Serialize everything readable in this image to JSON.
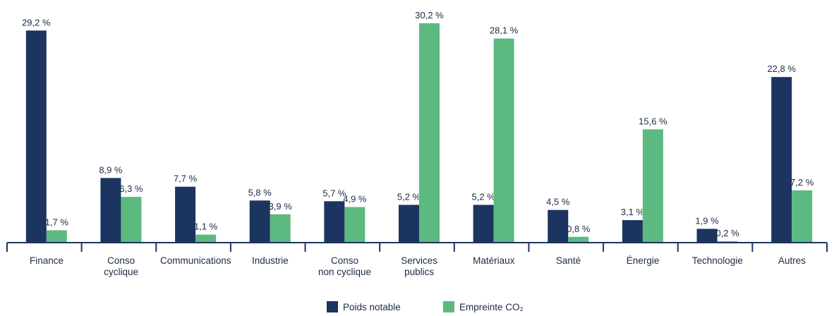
{
  "chart_data": {
    "type": "bar",
    "categories": [
      "Finance",
      "Conso\ncyclique",
      "Communications",
      "Industrie",
      "Conso\nnon cyclique",
      "Services\npublics",
      "Matériaux",
      "Santé",
      "Énergie",
      "Technologie",
      "Autres"
    ],
    "series": [
      {
        "name": "Poids notable",
        "color": "#1b3560",
        "values": [
          29.2,
          8.9,
          7.7,
          5.8,
          5.7,
          5.2,
          5.2,
          4.5,
          3.1,
          1.9,
          22.8
        ],
        "value_labels": [
          "29,2 %",
          "8,9 %",
          "7,7 %",
          "5,8 %",
          "5,7 %",
          "5,2 %",
          "5,2 %",
          "4,5 %",
          "3,1 %",
          "1,9 %",
          "22,8 %"
        ]
      },
      {
        "name": "Empreinte CO₂",
        "color": "#5cb97f",
        "values": [
          1.7,
          6.3,
          1.1,
          3.9,
          4.9,
          30.2,
          28.1,
          0.8,
          15.6,
          0.2,
          7.2
        ],
        "value_labels": [
          "1,7 %",
          "6,3 %",
          "1,1 %",
          "3,9 %",
          "4,9 %",
          "30,2 %",
          "28,1 %",
          "0,8 %",
          "15,6 %",
          "0,2 %",
          "7,2 %"
        ]
      }
    ],
    "legend": "bottom"
  }
}
